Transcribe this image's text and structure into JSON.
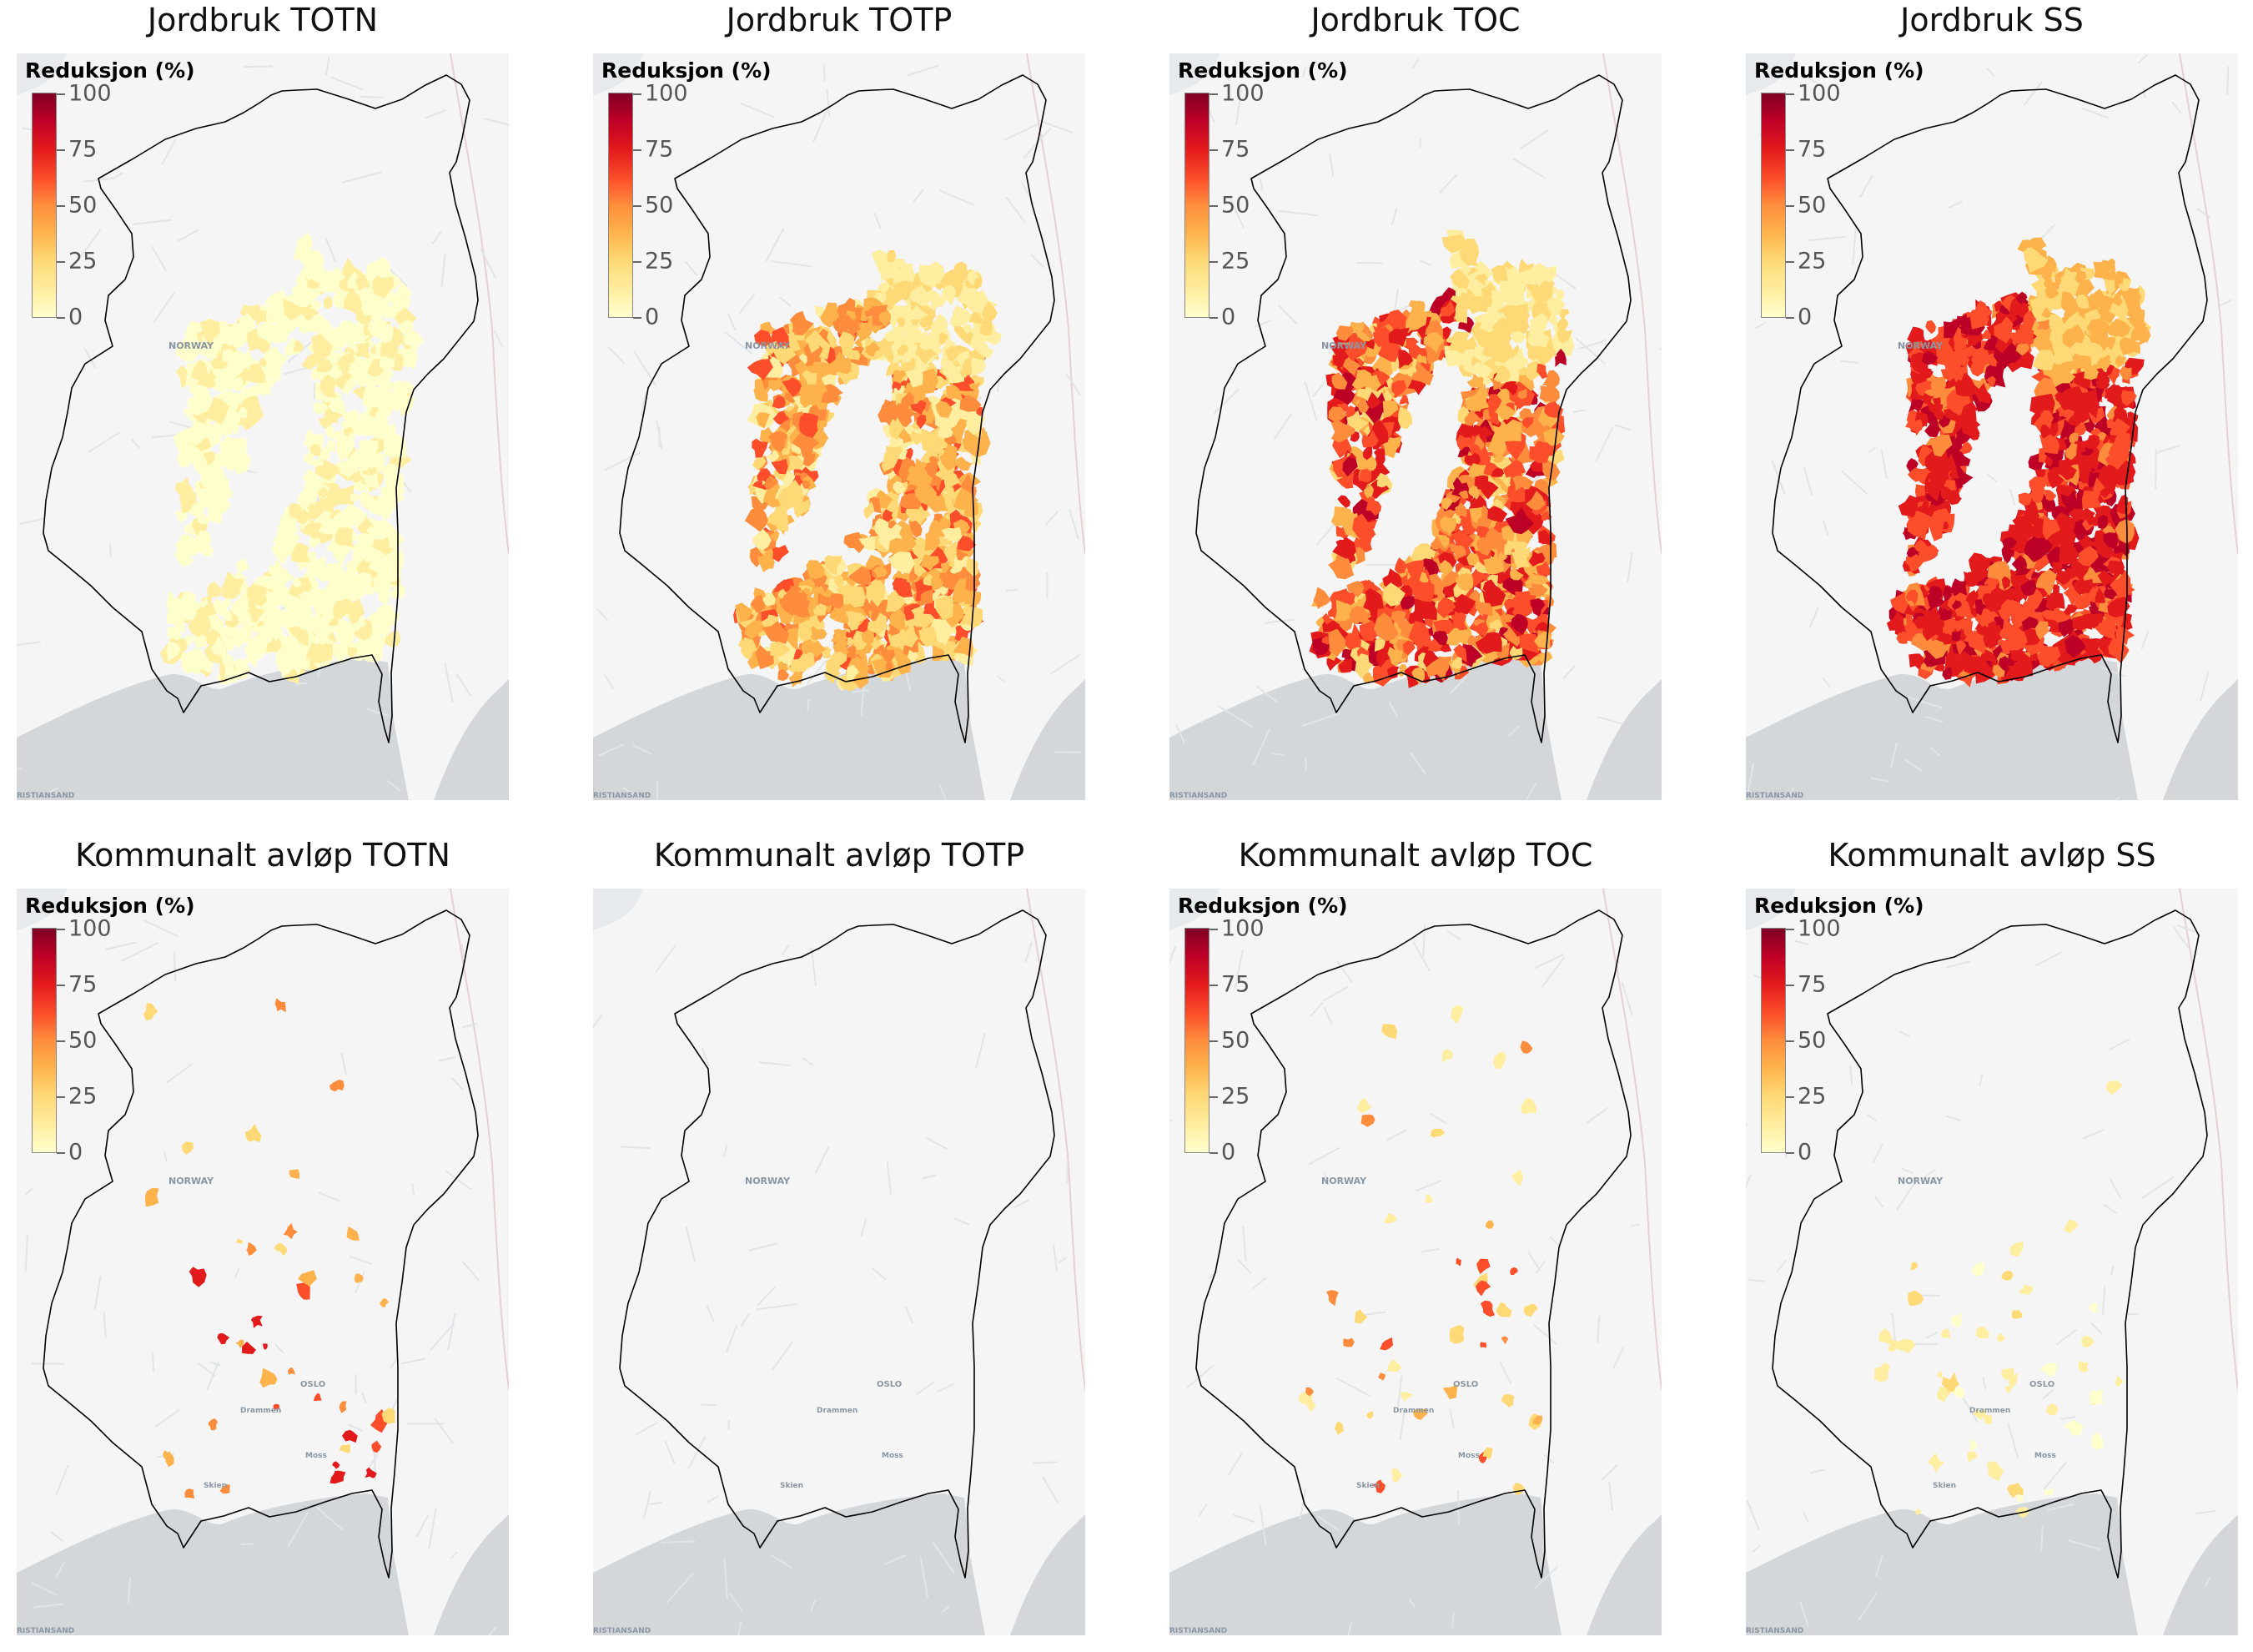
{
  "figure": {
    "panels": [
      {
        "title": "Jordbruk TOTN",
        "colorbar": true,
        "intensity": "very_low"
      },
      {
        "title": "Jordbruk TOTP",
        "colorbar": true,
        "intensity": "medium"
      },
      {
        "title": "Jordbruk TOC",
        "colorbar": true,
        "intensity": "medium_high"
      },
      {
        "title": "Jordbruk SS",
        "colorbar": true,
        "intensity": "high"
      },
      {
        "title": "Kommunalt avløp TOTN",
        "colorbar": true,
        "intensity": "sparse_high"
      },
      {
        "title": "Kommunalt avløp TOTP",
        "colorbar": false,
        "intensity": "none"
      },
      {
        "title": "Kommunalt avløp TOC",
        "colorbar": true,
        "intensity": "sparse_medium"
      },
      {
        "title": "Kommunalt avløp SS",
        "colorbar": true,
        "intensity": "sparse_low"
      }
    ]
  },
  "colorbar": {
    "label": "Reduksjon (%)",
    "ticks": [
      "100",
      "75",
      "50",
      "25",
      "0"
    ],
    "range": [
      0,
      100
    ],
    "colormap": [
      "#ffffcc",
      "#ffeda0",
      "#fed976",
      "#feb24c",
      "#fd8d3c",
      "#fc4e2a",
      "#e31a1c",
      "#bd0026",
      "#800026"
    ]
  },
  "basemap": {
    "country_label": "NORWAY",
    "cities": [
      "OSLO",
      "Drammen",
      "Moss",
      "Skien",
      "RISTIANSAND"
    ],
    "land_color": "#f4f5f4",
    "water_color": "#d3d7da"
  }
}
